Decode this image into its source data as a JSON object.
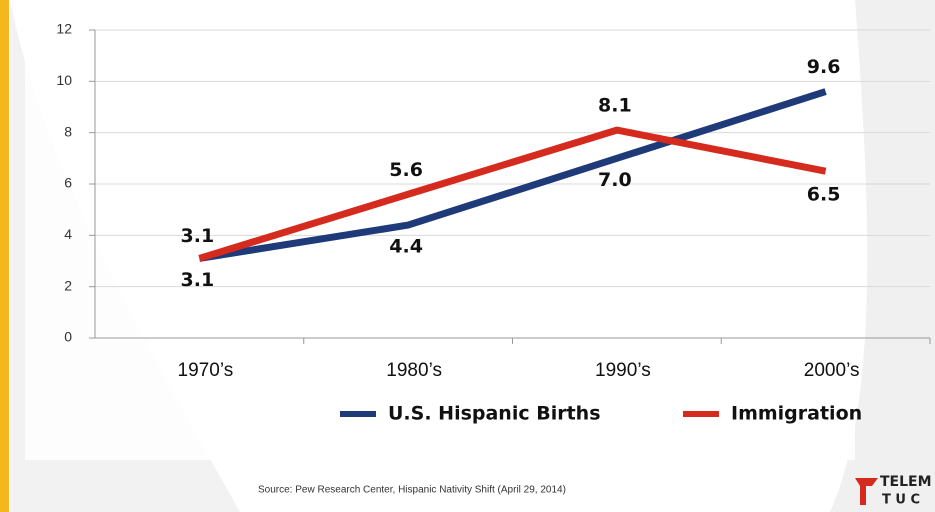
{
  "chart_data": {
    "type": "line",
    "categories": [
      "1970’s",
      "1980’s",
      "1990’s",
      "2000’s"
    ],
    "series": [
      {
        "name": "U.S. Hispanic Births",
        "color": "#1e3a78",
        "values": [
          3.1,
          4.4,
          7.0,
          9.6
        ],
        "value_labels": [
          "3.1",
          "4.4",
          "7.0",
          "9.6"
        ]
      },
      {
        "name": "Immigration",
        "color": "#d52b1e",
        "values": [
          3.1,
          5.6,
          8.1,
          6.5
        ]
      }
    ],
    "ylim": [
      0,
      12
    ],
    "yticks": [
      0,
      2,
      4,
      6,
      8,
      10,
      12
    ],
    "grid": true,
    "source": "Source: Pew Research Center, Hispanic Nativity Shift (April 29, 2014)",
    "logo": [
      "TELEM",
      "T U C"
    ]
  }
}
